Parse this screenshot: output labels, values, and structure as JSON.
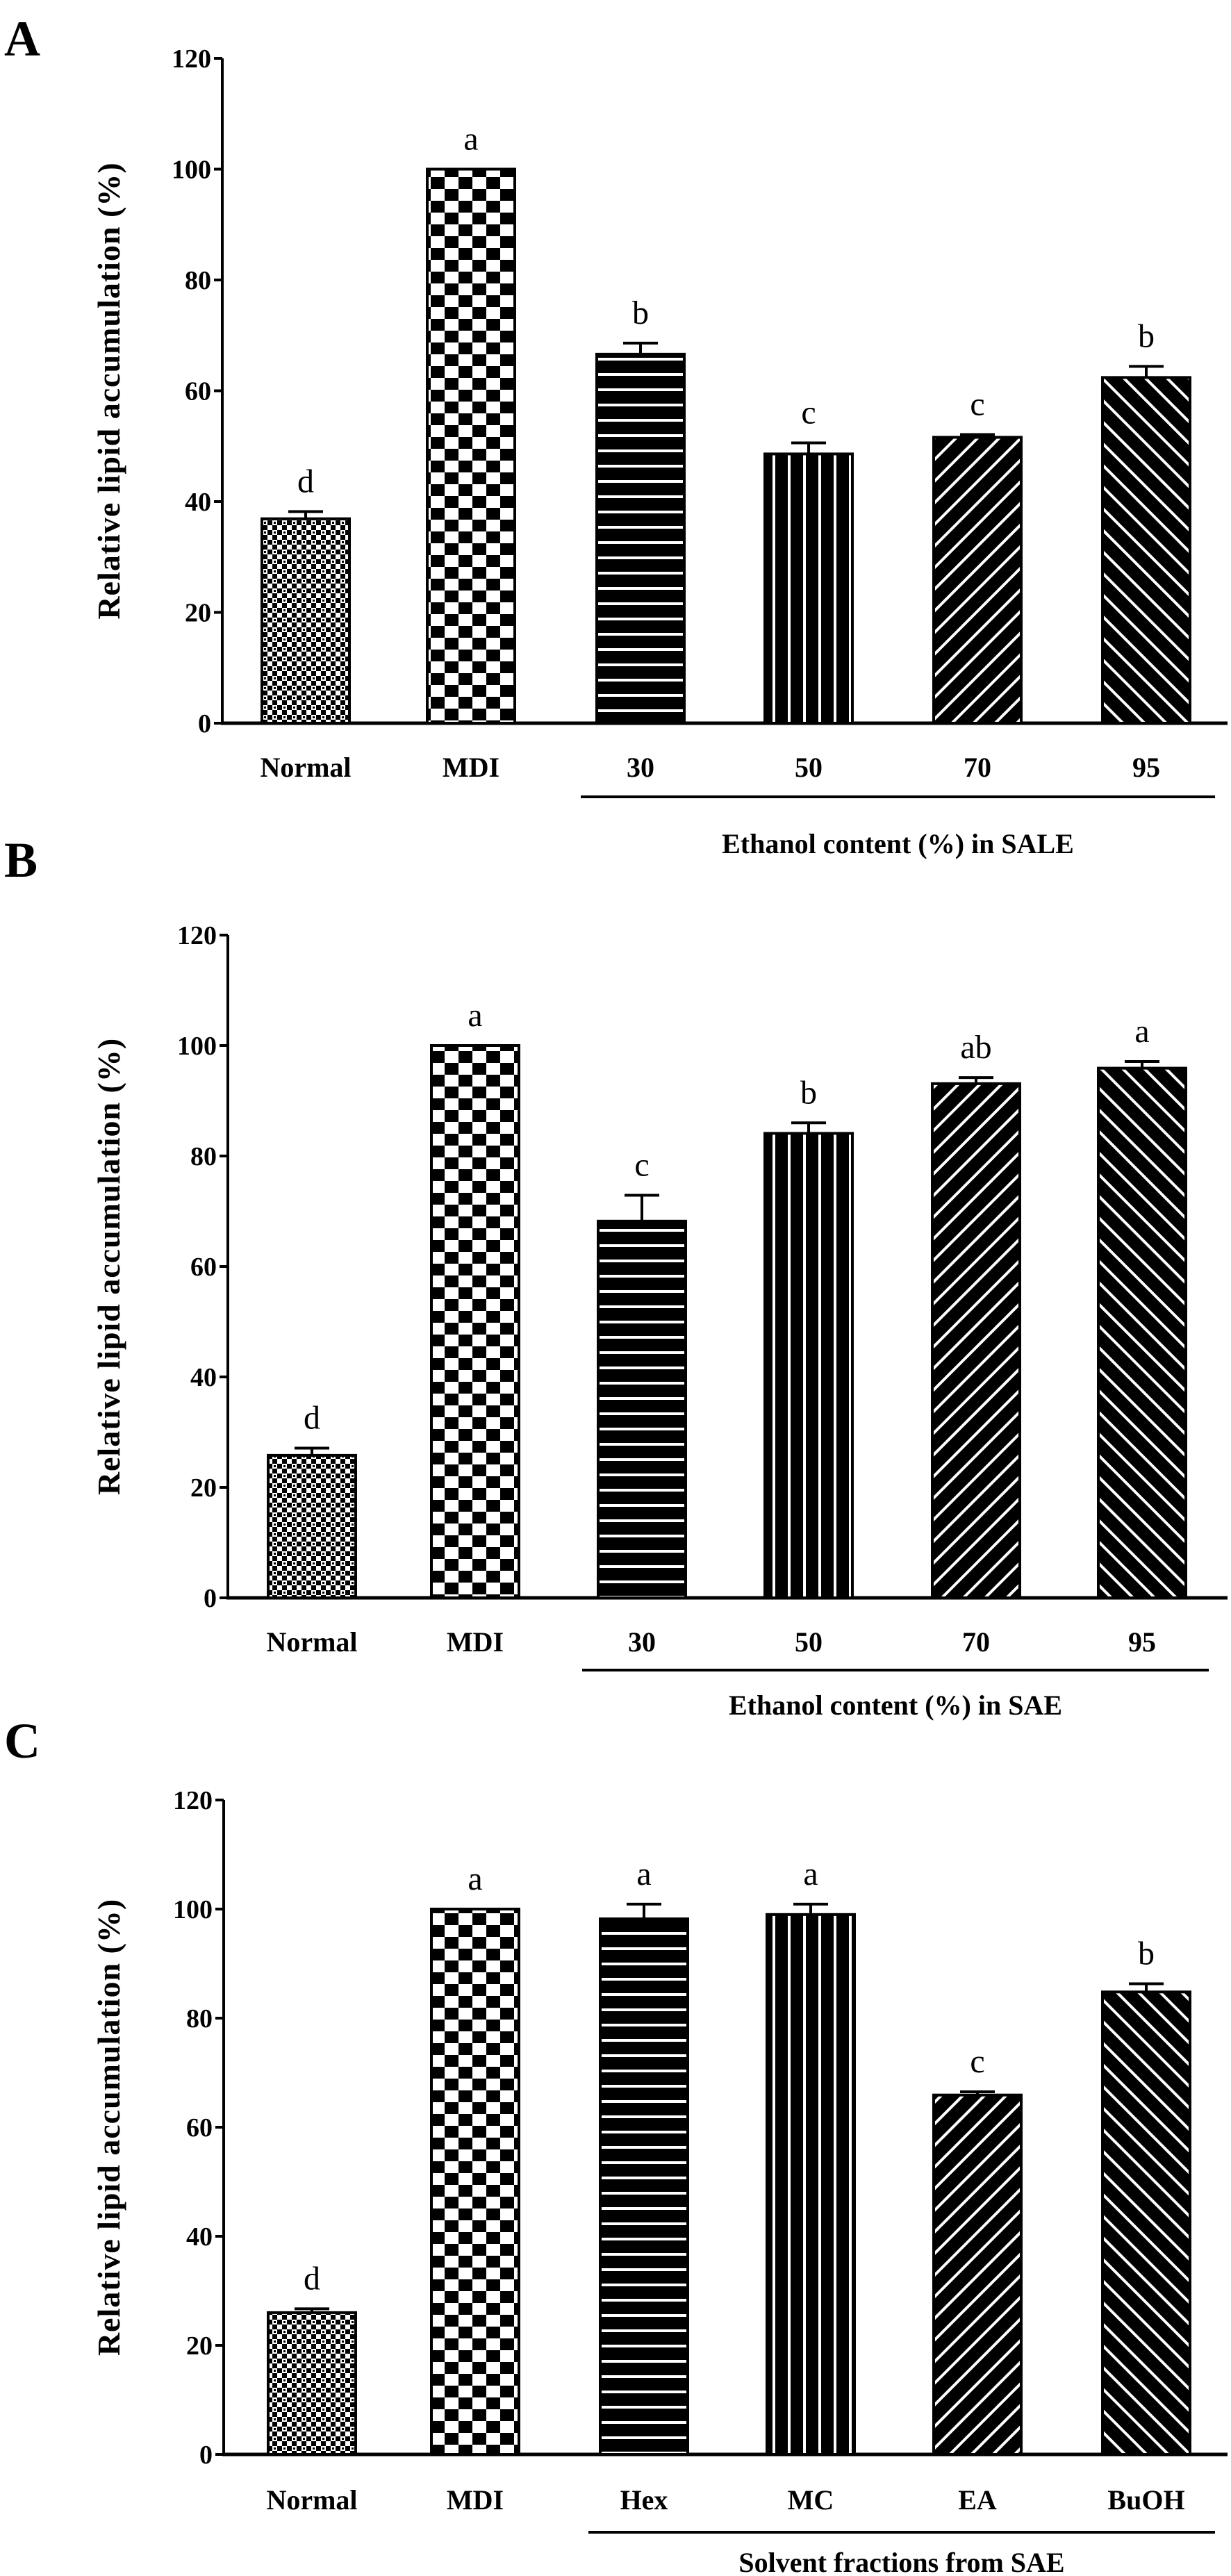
{
  "chart_data": [
    {
      "panel": "A",
      "type": "bar",
      "ylabel": "Relative lipid accumulation (%)",
      "ylim": [
        0,
        120
      ],
      "yticks": [
        "0",
        "20",
        "40",
        "60",
        "80",
        "100",
        "120"
      ],
      "categories": [
        "Normal",
        "MDI",
        "30",
        "50",
        "70",
        "95"
      ],
      "values": [
        36.9,
        100,
        66.6,
        48.6,
        51.6,
        62.4
      ],
      "errors": [
        1.3,
        0,
        2.0,
        2.0,
        0.5,
        2.0
      ],
      "letters": [
        "d",
        "a",
        "b",
        "c",
        "c",
        "b"
      ],
      "patterns": [
        "fine-check",
        "check",
        "hlines",
        "vlines",
        "diag-up",
        "diag-down"
      ],
      "group_label": "Ethanol content (%) in SALE",
      "grid": false
    },
    {
      "panel": "B",
      "type": "bar",
      "ylabel": "Relative lipid accumulation (%)",
      "ylim": [
        0,
        120
      ],
      "yticks": [
        "0",
        "20",
        "40",
        "60",
        "80",
        "100",
        "120"
      ],
      "categories": [
        "Normal",
        "MDI",
        "30",
        "50",
        "70",
        "95"
      ],
      "values": [
        25.8,
        100,
        68.2,
        84.1,
        93.1,
        95.9
      ],
      "errors": [
        1.3,
        0,
        4.7,
        1.9,
        1.1,
        1.2
      ],
      "letters": [
        "d",
        "a",
        "c",
        "b",
        "ab",
        "a"
      ],
      "patterns": [
        "fine-check",
        "check",
        "hlines",
        "vlines",
        "diag-up",
        "diag-down"
      ],
      "group_label": "Ethanol content  (%) in SAE",
      "grid": false
    },
    {
      "panel": "C",
      "type": "bar",
      "ylabel": "Relative lipid accumulation (%)",
      "ylim": [
        0,
        120
      ],
      "yticks": [
        "0",
        "20",
        "40",
        "60",
        "80",
        "100",
        "120"
      ],
      "categories": [
        "Normal",
        "MDI",
        "Hex",
        "MC",
        "EA",
        "BuOH"
      ],
      "values": [
        26.0,
        100,
        98.2,
        99.0,
        65.9,
        84.8
      ],
      "errors": [
        0.7,
        0,
        2.7,
        1.9,
        0.6,
        1.5
      ],
      "letters": [
        "d",
        "a",
        "a",
        "a",
        "c",
        "b"
      ],
      "patterns": [
        "fine-check",
        "check",
        "hlines",
        "vlines",
        "diag-up",
        "diag-down"
      ],
      "group_label": "Solvent fractions from SAE",
      "grid": false
    }
  ]
}
